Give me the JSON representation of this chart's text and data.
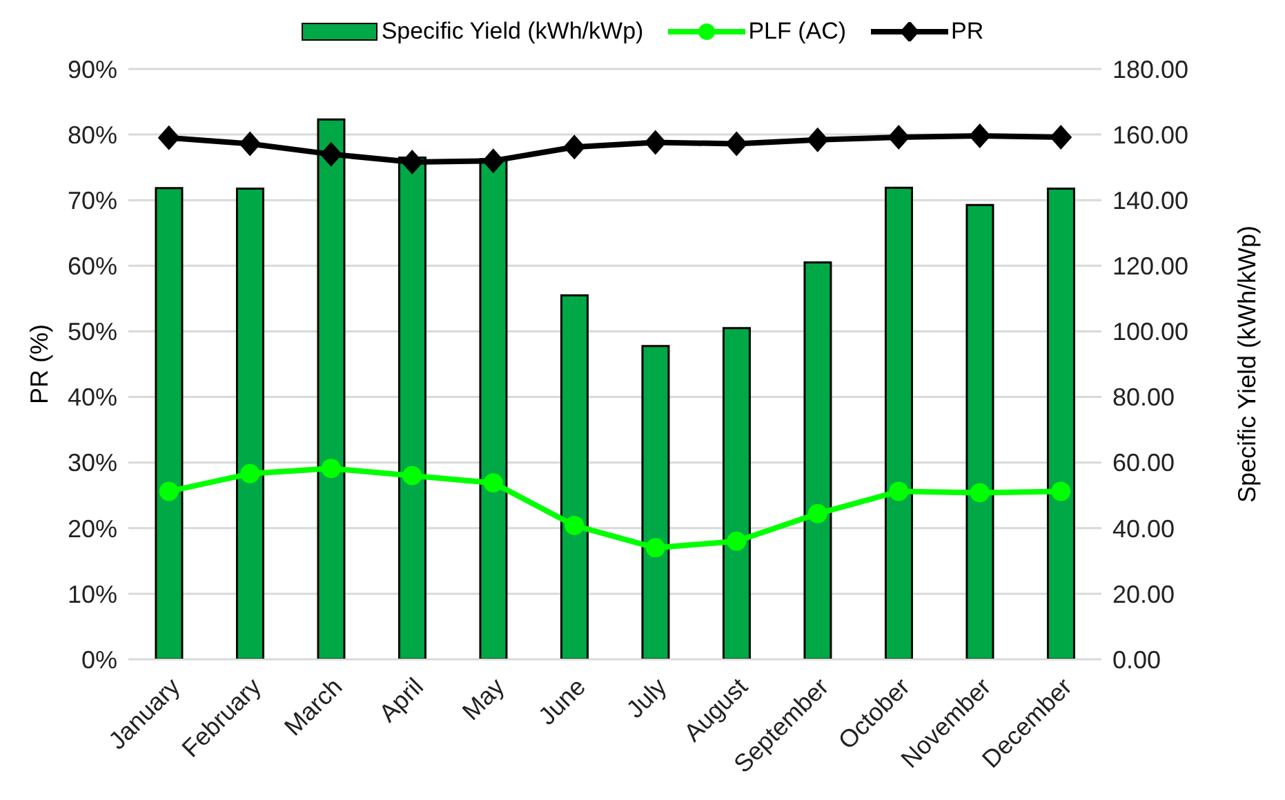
{
  "chart_data": {
    "type": "bar",
    "categories": [
      "January",
      "February",
      "March",
      "April",
      "May",
      "June",
      "July",
      "August",
      "September",
      "October",
      "November",
      "December"
    ],
    "series": [
      {
        "name": "Specific Yield (kWh/kWp)",
        "axis": "y2",
        "color": "#00a846",
        "values": [
          143.7,
          143.5,
          164.6,
          153,
          152.5,
          111,
          95.5,
          101,
          121,
          143.8,
          138.5,
          143.5
        ]
      },
      {
        "name": "PLF (AC)",
        "type": "line",
        "marker": "circle",
        "color": "#00ff00",
        "values": [
          25.6,
          28.3,
          29.1,
          28.0,
          26.9,
          20.4,
          17.0,
          18.0,
          22.2,
          25.6,
          25.4,
          25.6
        ]
      },
      {
        "name": "PR",
        "type": "line",
        "marker": "diamond",
        "color": "#000000",
        "values": [
          79.5,
          78.6,
          77.0,
          75.8,
          76.0,
          78.1,
          78.8,
          78.6,
          79.2,
          79.6,
          79.8,
          79.6
        ]
      }
    ],
    "ylabel": "PR (%)",
    "y2label": "Specific Yield (kWh/kWp)",
    "ylim": [
      0,
      90
    ],
    "yticks": [
      {
        "value": 0,
        "label": "0%"
      },
      {
        "value": 10,
        "label": "10%"
      },
      {
        "value": 20,
        "label": "20%"
      },
      {
        "value": 30,
        "label": "30%"
      },
      {
        "value": 40,
        "label": "40%"
      },
      {
        "value": 50,
        "label": "50%"
      },
      {
        "value": 60,
        "label": "60%"
      },
      {
        "value": 70,
        "label": "70%"
      },
      {
        "value": 80,
        "label": "80%"
      },
      {
        "value": 90,
        "label": "90%"
      }
    ],
    "y2lim": [
      0,
      180
    ],
    "y2ticks": [
      {
        "value": 0,
        "label": "0.00"
      },
      {
        "value": 20,
        "label": "20.00"
      },
      {
        "value": 40,
        "label": "40.00"
      },
      {
        "value": 60,
        "label": "60.00"
      },
      {
        "value": 80,
        "label": "80.00"
      },
      {
        "value": 100,
        "label": "100.00"
      },
      {
        "value": 120,
        "label": "120.00"
      },
      {
        "value": 140,
        "label": "140.00"
      },
      {
        "value": 160,
        "label": "160.00"
      },
      {
        "value": 180,
        "label": "180.00"
      }
    ],
    "grid": "y",
    "legend": "top"
  }
}
